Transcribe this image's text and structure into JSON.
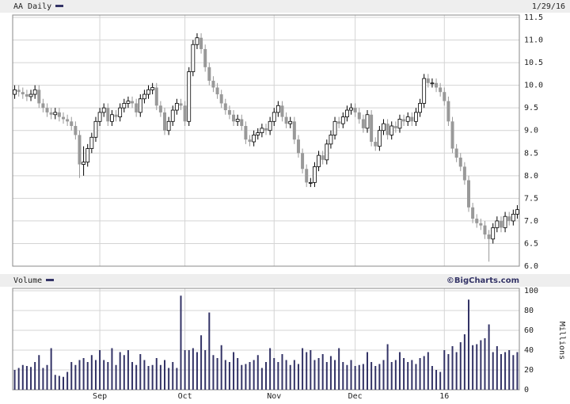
{
  "chart_data": [
    {
      "type": "candlestick",
      "title": "AA Daily",
      "date": "1/29/16",
      "color": "#333366",
      "up_color": "#ffffff",
      "down_color": "#999999",
      "open": [
        9.8,
        9.9,
        9.85,
        9.8,
        9.75,
        9.8,
        9.9,
        9.6,
        9.5,
        9.4,
        9.35,
        9.4,
        9.3,
        9.25,
        9.2,
        9.1,
        8.9,
        8.25,
        8.3,
        8.6,
        8.85,
        9.2,
        9.4,
        9.5,
        9.2,
        9.35,
        9.3,
        9.5,
        9.6,
        9.65,
        9.6,
        9.4,
        9.7,
        9.8,
        9.9,
        9.95,
        9.55,
        9.4,
        9.0,
        9.2,
        9.45,
        9.6,
        9.55,
        9.2,
        10.3,
        10.9,
        11.05,
        10.8,
        10.4,
        10.1,
        9.95,
        9.8,
        9.6,
        9.45,
        9.35,
        9.2,
        9.25,
        9.1,
        8.8,
        8.75,
        8.9,
        8.95,
        9.05,
        9.0,
        9.2,
        9.4,
        9.55,
        9.3,
        9.15,
        9.2,
        8.8,
        8.5,
        8.15,
        7.85,
        7.85,
        8.2,
        8.45,
        8.35,
        8.7,
        8.9,
        9.2,
        9.15,
        9.3,
        9.45,
        9.5,
        9.4,
        9.25,
        9.05,
        9.35,
        8.75,
        8.65,
        9.0,
        9.15,
        8.9,
        9.1,
        9.05,
        9.25,
        9.2,
        9.3,
        9.2,
        9.4,
        9.6,
        10.15,
        10.05,
        10.05,
        9.95,
        9.85,
        9.65,
        9.2,
        8.6,
        8.4,
        8.2,
        7.9,
        7.3,
        7.05,
        6.95,
        6.9,
        6.7,
        6.6,
        6.85,
        7.0,
        6.85,
        7.1,
        7.0,
        7.15
      ],
      "high": [
        10.0,
        10.0,
        9.95,
        9.9,
        9.9,
        10.0,
        10.0,
        9.7,
        9.6,
        9.5,
        9.5,
        9.5,
        9.4,
        9.35,
        9.3,
        9.2,
        9.0,
        8.65,
        8.7,
        8.95,
        9.3,
        9.5,
        9.6,
        9.6,
        9.45,
        9.45,
        9.6,
        9.7,
        9.75,
        9.75,
        9.7,
        9.8,
        9.9,
        10.0,
        10.05,
        10.05,
        9.65,
        9.5,
        9.3,
        9.55,
        9.7,
        9.7,
        9.65,
        10.4,
        11.0,
        11.15,
        11.15,
        10.9,
        10.5,
        10.2,
        10.05,
        9.9,
        9.7,
        9.55,
        9.45,
        9.35,
        9.35,
        9.2,
        8.9,
        9.0,
        9.05,
        9.15,
        9.15,
        9.3,
        9.5,
        9.65,
        9.65,
        9.4,
        9.3,
        9.3,
        8.9,
        8.6,
        8.25,
        7.95,
        8.3,
        8.55,
        8.55,
        8.8,
        9.0,
        9.3,
        9.3,
        9.4,
        9.55,
        9.6,
        9.6,
        9.5,
        9.35,
        9.45,
        9.45,
        8.85,
        9.1,
        9.25,
        9.25,
        9.2,
        9.2,
        9.35,
        9.35,
        9.4,
        9.4,
        9.5,
        9.7,
        10.25,
        10.25,
        10.15,
        10.15,
        10.05,
        9.95,
        9.75,
        9.3,
        8.7,
        8.5,
        8.3,
        8.0,
        7.4,
        7.15,
        7.05,
        7.0,
        6.8,
        6.95,
        7.1,
        7.1,
        7.2,
        7.2,
        7.25,
        7.35
      ],
      "low": [
        9.7,
        9.75,
        9.7,
        9.65,
        9.65,
        9.7,
        9.5,
        9.4,
        9.3,
        9.25,
        9.25,
        9.2,
        9.15,
        9.1,
        9.0,
        8.8,
        7.95,
        8.0,
        8.2,
        8.5,
        8.75,
        9.1,
        9.3,
        9.1,
        9.1,
        9.2,
        9.2,
        9.4,
        9.5,
        9.5,
        9.3,
        9.3,
        9.6,
        9.7,
        9.8,
        9.45,
        9.3,
        8.9,
        8.9,
        9.1,
        9.35,
        9.45,
        9.1,
        9.1,
        10.2,
        10.8,
        10.7,
        10.3,
        10.0,
        9.85,
        9.7,
        9.5,
        9.35,
        9.25,
        9.1,
        9.1,
        9.0,
        8.7,
        8.65,
        8.65,
        8.8,
        8.85,
        8.9,
        8.9,
        9.1,
        9.3,
        9.2,
        9.05,
        9.05,
        8.7,
        8.4,
        8.05,
        7.75,
        7.75,
        7.75,
        8.1,
        8.25,
        8.25,
        8.6,
        8.8,
        9.05,
        9.05,
        9.2,
        9.35,
        9.3,
        9.15,
        8.95,
        8.95,
        8.65,
        8.55,
        8.55,
        8.9,
        8.8,
        8.8,
        8.95,
        8.95,
        9.1,
        9.1,
        9.1,
        9.1,
        9.3,
        9.5,
        9.95,
        9.95,
        9.85,
        9.75,
        9.55,
        9.1,
        8.5,
        8.3,
        8.1,
        7.8,
        7.2,
        6.95,
        6.85,
        6.8,
        6.6,
        6.1,
        6.5,
        6.75,
        6.75,
        6.75,
        6.9,
        6.9,
        7.05
      ],
      "close": [
        9.9,
        9.85,
        9.8,
        9.75,
        9.8,
        9.9,
        9.6,
        9.5,
        9.4,
        9.35,
        9.4,
        9.3,
        9.25,
        9.2,
        9.1,
        8.9,
        8.25,
        8.3,
        8.6,
        8.85,
        9.2,
        9.4,
        9.5,
        9.2,
        9.35,
        9.3,
        9.5,
        9.6,
        9.65,
        9.6,
        9.4,
        9.7,
        9.8,
        9.9,
        9.95,
        9.55,
        9.4,
        9.0,
        9.2,
        9.45,
        9.6,
        9.55,
        9.2,
        10.3,
        10.9,
        11.05,
        10.8,
        10.4,
        10.1,
        9.95,
        9.8,
        9.6,
        9.45,
        9.35,
        9.2,
        9.25,
        9.1,
        8.8,
        8.75,
        8.9,
        8.95,
        9.05,
        9.0,
        9.2,
        9.4,
        9.55,
        9.3,
        9.15,
        9.2,
        8.8,
        8.5,
        8.15,
        7.85,
        7.85,
        8.2,
        8.45,
        8.35,
        8.7,
        8.9,
        9.2,
        9.15,
        9.3,
        9.45,
        9.5,
        9.4,
        9.25,
        9.05,
        9.35,
        8.75,
        8.65,
        9.0,
        9.15,
        8.9,
        9.1,
        9.05,
        9.25,
        9.2,
        9.3,
        9.2,
        9.4,
        9.6,
        10.15,
        10.05,
        10.05,
        9.95,
        9.85,
        9.65,
        9.2,
        8.6,
        8.4,
        8.2,
        7.9,
        7.3,
        7.05,
        6.95,
        6.9,
        6.7,
        6.6,
        6.85,
        7.0,
        6.85,
        7.1,
        7.0,
        7.15,
        7.25
      ],
      "ylim": [
        6.0,
        11.5
      ],
      "yticks": [
        {
          "value": 6,
          "label": "6.0"
        },
        {
          "value": 6.5,
          "label": "6.5"
        },
        {
          "value": 7,
          "label": "7.0"
        },
        {
          "value": 7.5,
          "label": "7.5"
        },
        {
          "value": 8,
          "label": "8.0"
        },
        {
          "value": 8.5,
          "label": "8.5"
        },
        {
          "value": 9,
          "label": "9.0"
        },
        {
          "value": 9.5,
          "label": "9.5"
        },
        {
          "value": 10,
          "label": "10.0"
        },
        {
          "value": 10.5,
          "label": "10.5"
        },
        {
          "value": 11,
          "label": "11.0"
        },
        {
          "value": 11.5,
          "label": "11.5"
        }
      ],
      "grid": true
    },
    {
      "type": "bar",
      "title": "Volume",
      "credit": "©BigCharts.com",
      "ylabel": "Millions",
      "color": "#333366",
      "categories": [
        null,
        null,
        null,
        null,
        null,
        null,
        null,
        null,
        null,
        null,
        null,
        null,
        null,
        null,
        null,
        null,
        null,
        null,
        null,
        null,
        null,
        "Sep",
        null,
        null,
        null,
        null,
        null,
        null,
        null,
        null,
        null,
        null,
        null,
        null,
        null,
        null,
        null,
        null,
        null,
        null,
        null,
        null,
        "Oct",
        null,
        null,
        null,
        null,
        null,
        null,
        null,
        null,
        null,
        null,
        null,
        null,
        null,
        null,
        null,
        null,
        null,
        null,
        null,
        null,
        null,
        "Nov",
        null,
        null,
        null,
        null,
        null,
        null,
        null,
        null,
        null,
        null,
        null,
        null,
        null,
        null,
        null,
        null,
        null,
        null,
        null,
        "Dec",
        null,
        null,
        null,
        null,
        null,
        null,
        null,
        null,
        null,
        null,
        null,
        null,
        null,
        null,
        null,
        null,
        null,
        null,
        null,
        null,
        null,
        "16",
        null,
        null,
        null,
        null,
        null,
        null,
        null,
        null,
        null,
        null,
        null,
        null,
        null,
        null,
        null,
        null,
        null,
        null
      ],
      "values": [
        20,
        22,
        25,
        24,
        23,
        28,
        35,
        22,
        25,
        42,
        15,
        14,
        13,
        18,
        28,
        25,
        30,
        32,
        28,
        35,
        30,
        40,
        30,
        28,
        42,
        25,
        38,
        35,
        40,
        28,
        25,
        36,
        30,
        24,
        25,
        32,
        25,
        30,
        22,
        28,
        22,
        95,
        40,
        40,
        42,
        38,
        55,
        40,
        78,
        35,
        32,
        45,
        30,
        28,
        38,
        32,
        25,
        26,
        28,
        30,
        35,
        22,
        28,
        42,
        32,
        28,
        36,
        30,
        25,
        30,
        26,
        42,
        38,
        40,
        30,
        32,
        36,
        28,
        34,
        30,
        42,
        28,
        25,
        30,
        24,
        25,
        26,
        38,
        28,
        24,
        26,
        30,
        46,
        28,
        30,
        38,
        32,
        28,
        30,
        26,
        32,
        34,
        38,
        24,
        20,
        18,
        40,
        36,
        44,
        38,
        48,
        56,
        91,
        45,
        46,
        50,
        52,
        66,
        38,
        44,
        36,
        38,
        40,
        35,
        38
      ],
      "ylim": [
        0,
        100
      ],
      "yticks": [
        0,
        20,
        40,
        60,
        80,
        100
      ],
      "grid": true
    }
  ]
}
